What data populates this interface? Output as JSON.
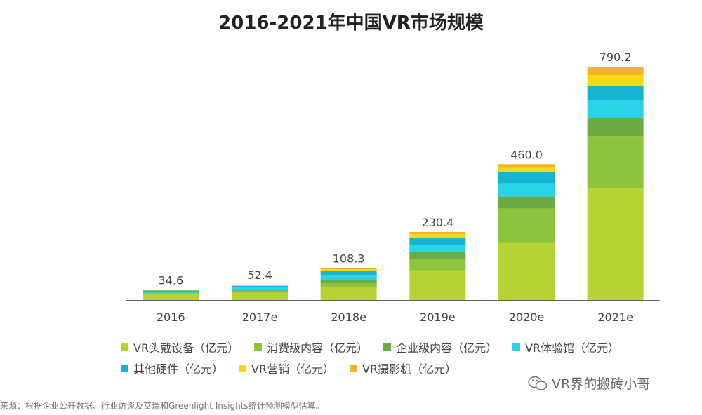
{
  "title": "2016-2021年中国VR市场规模",
  "source": "来源：根据企业公开数据、行业访谈及艾瑞和Greenlight Insights统计预测模型估算。",
  "watermark": "VR界的搬砖小哥",
  "chart_data": {
    "type": "bar",
    "stacked": true,
    "title": "2016-2021年中国VR市场规模",
    "categories": [
      "2016",
      "2017e",
      "2018e",
      "2019e",
      "2020e",
      "2021e"
    ],
    "totals": [
      34.6,
      52.4,
      108.3,
      230.4,
      460.0,
      790.2
    ],
    "total_labels": [
      "34.6",
      "52.4",
      "108.3",
      "230.4",
      "460.0",
      "790.2"
    ],
    "ylim": [
      0,
      850
    ],
    "grid": false,
    "legend_position": "bottom",
    "series": [
      {
        "name": "VR头戴设备（亿元）",
        "color": "#b5d334",
        "values": [
          20.0,
          25.0,
          45.0,
          100.0,
          195.0,
          380.0
        ]
      },
      {
        "name": "消费级内容（亿元）",
        "color": "#8cc43c",
        "values": [
          3.0,
          5.0,
          13.0,
          40.0,
          115.0,
          175.0
        ]
      },
      {
        "name": "企业级内容（亿元）",
        "color": "#6aab46",
        "values": [
          1.5,
          3.0,
          9.0,
          22.0,
          40.0,
          60.0
        ]
      },
      {
        "name": "VR体验馆（亿元）",
        "color": "#29d4e8",
        "values": [
          4.0,
          9.0,
          16.0,
          25.0,
          45.0,
          63.0
        ]
      },
      {
        "name": "其他硬件（亿元）",
        "color": "#16b3d5",
        "values": [
          3.6,
          5.4,
          15.3,
          23.4,
          40.0,
          48.2
        ]
      },
      {
        "name": "VR营销（亿元）",
        "color": "#f4d913",
        "values": [
          1.5,
          3.0,
          6.0,
          12.0,
          15.0,
          36.0
        ]
      },
      {
        "name": "VR摄影机（亿元）",
        "color": "#f2b526",
        "values": [
          1.0,
          2.0,
          4.0,
          8.0,
          10.0,
          28.0
        ]
      }
    ]
  }
}
